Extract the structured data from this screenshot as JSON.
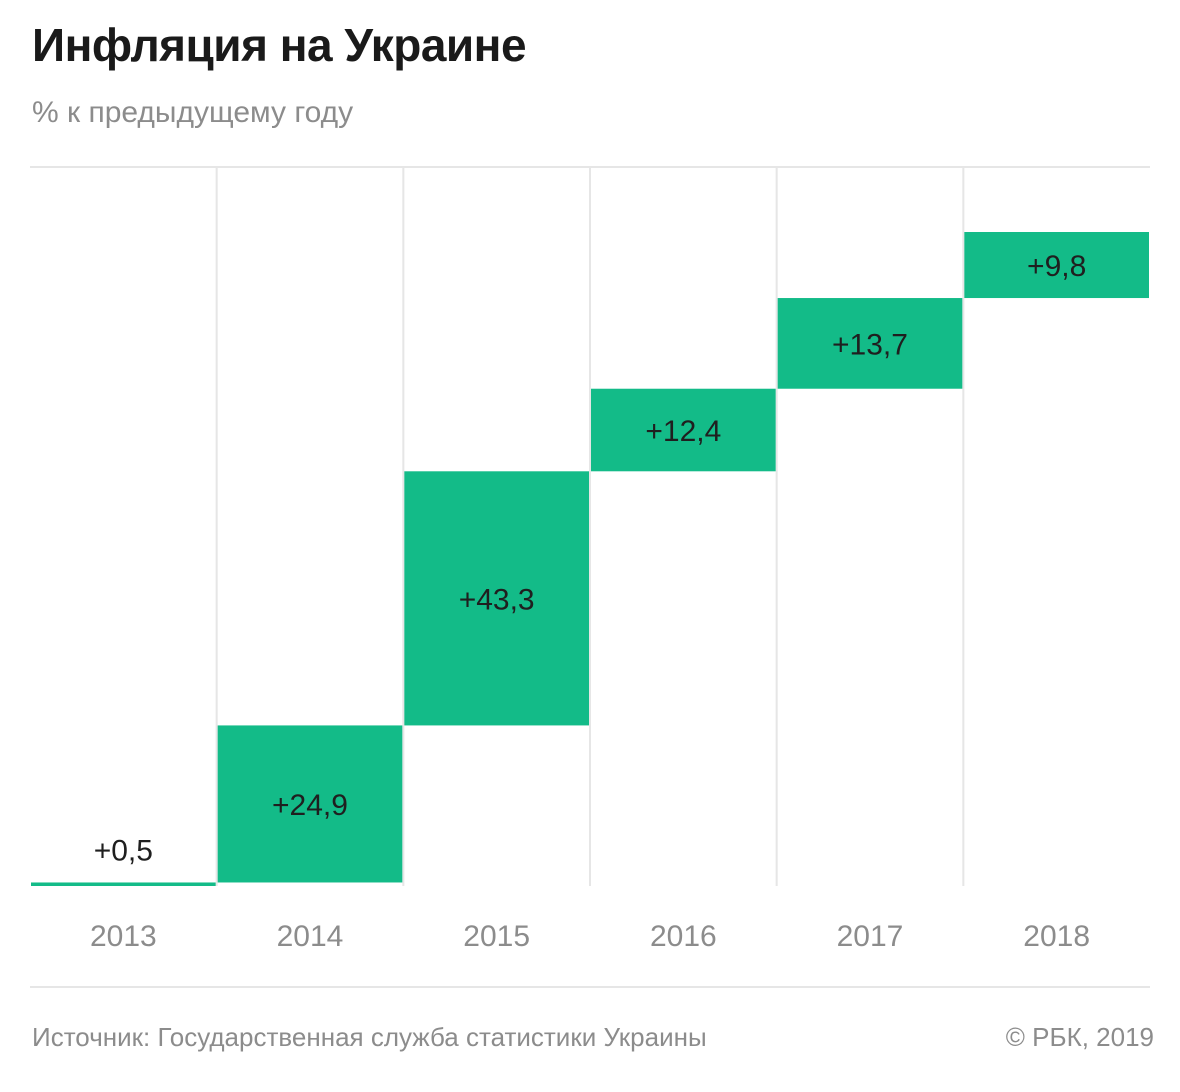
{
  "title": "Инфляция на Украине",
  "subtitle": "% к предыдущему году",
  "source": "Источник: Государственная служба статистики Украины",
  "copyright": "© РБК, 2019",
  "colors": {
    "bar": "#13bb88",
    "gridline": "#e6e6e6",
    "text": "#1f1f1f",
    "muted": "#8c8c8c"
  },
  "chart_data": {
    "type": "bar",
    "subtype": "waterfall",
    "title": "Инфляция на Украине",
    "subtitle": "% к предыдущему году",
    "categories": [
      "2013",
      "2014",
      "2015",
      "2016",
      "2017",
      "2018"
    ],
    "values": [
      0.5,
      24.9,
      43.3,
      12.4,
      13.7,
      9.8
    ],
    "labels": [
      "+0,5",
      "+24,9",
      "+43,3",
      "+12,4",
      "+13,7",
      "+9,8"
    ],
    "xlabel": "",
    "ylabel": "",
    "grid": "vertical",
    "legend": "none"
  }
}
